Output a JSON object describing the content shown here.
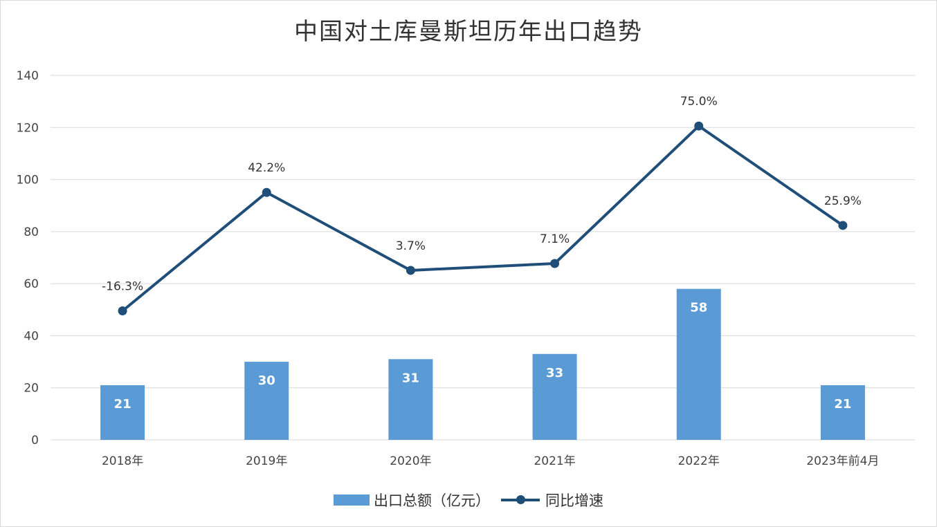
{
  "chart_data": {
    "type": "bar+line",
    "title": "中国对土库曼斯坦历年出口趋势",
    "categories": [
      "2018年",
      "2019年",
      "2020年",
      "2021年",
      "2022年",
      "2023年前4月"
    ],
    "series": [
      {
        "name": "出口总额（亿元）",
        "type": "bar",
        "axis": "left",
        "color": "#5b9bd5",
        "values": [
          21,
          30,
          31,
          33,
          58,
          21
        ],
        "labels": [
          "21",
          "30",
          "31",
          "33",
          "58",
          "21"
        ]
      },
      {
        "name": "同比增速",
        "type": "line",
        "axis": "secondary-hidden",
        "color": "#1f4e79",
        "values": [
          -16.3,
          42.2,
          3.7,
          7.1,
          75.0,
          25.9
        ],
        "labels": [
          "-16.3%",
          "42.2%",
          "3.7%",
          "7.1%",
          "75.0%",
          "25.9%"
        ]
      }
    ],
    "ylim": [
      0,
      140
    ],
    "yticks": [
      "0",
      "20",
      "40",
      "60",
      "80",
      "100",
      "120",
      "140"
    ],
    "secondary_ylim": [
      -80,
      100
    ],
    "grid": true,
    "legend": "bottom"
  }
}
